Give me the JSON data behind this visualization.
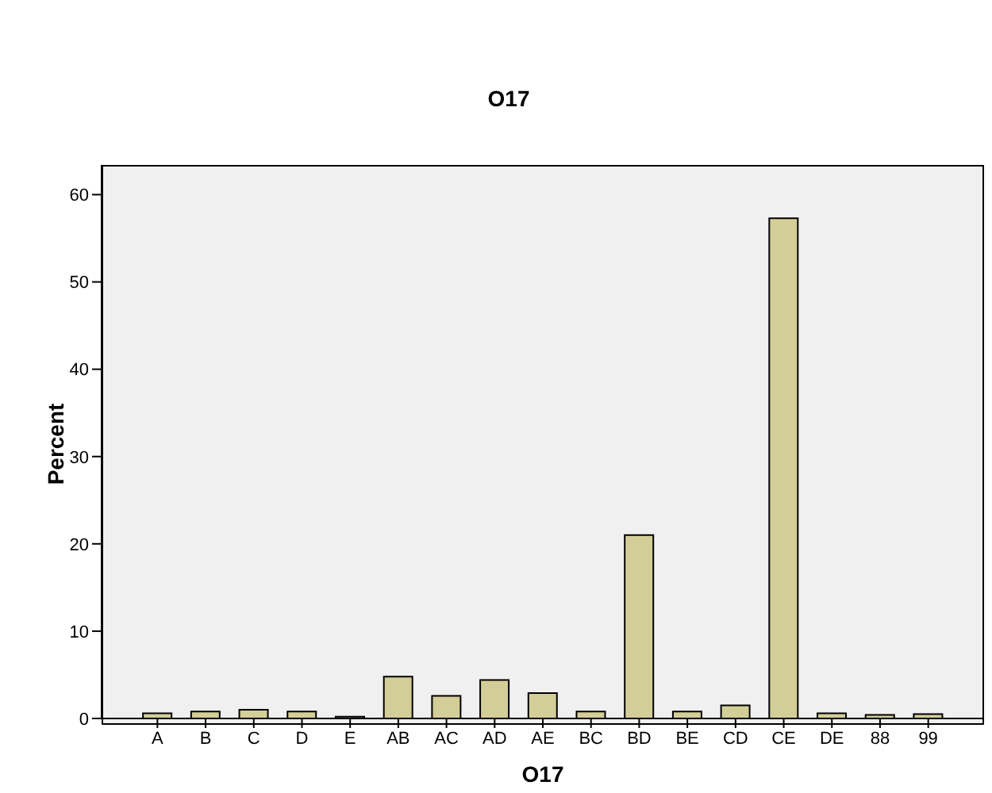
{
  "chart_data": {
    "type": "bar",
    "title": "O17",
    "xlabel": "O17",
    "ylabel": "Percent",
    "categories": [
      "A",
      "B",
      "C",
      "D",
      "E",
      "AB",
      "AC",
      "AD",
      "AE",
      "BC",
      "BD",
      "BE",
      "CD",
      "CE",
      "DE",
      "88",
      "99"
    ],
    "values": [
      0.6,
      0.8,
      1.0,
      0.8,
      0.2,
      4.8,
      2.6,
      4.4,
      2.9,
      0.8,
      21.0,
      0.8,
      1.5,
      57.3,
      0.6,
      0.4,
      0.5
    ],
    "color": "#d3ce97",
    "ylim": [
      0,
      63.4
    ],
    "yticks": [
      0,
      10,
      20,
      30,
      40,
      50,
      60
    ],
    "grid": false
  }
}
